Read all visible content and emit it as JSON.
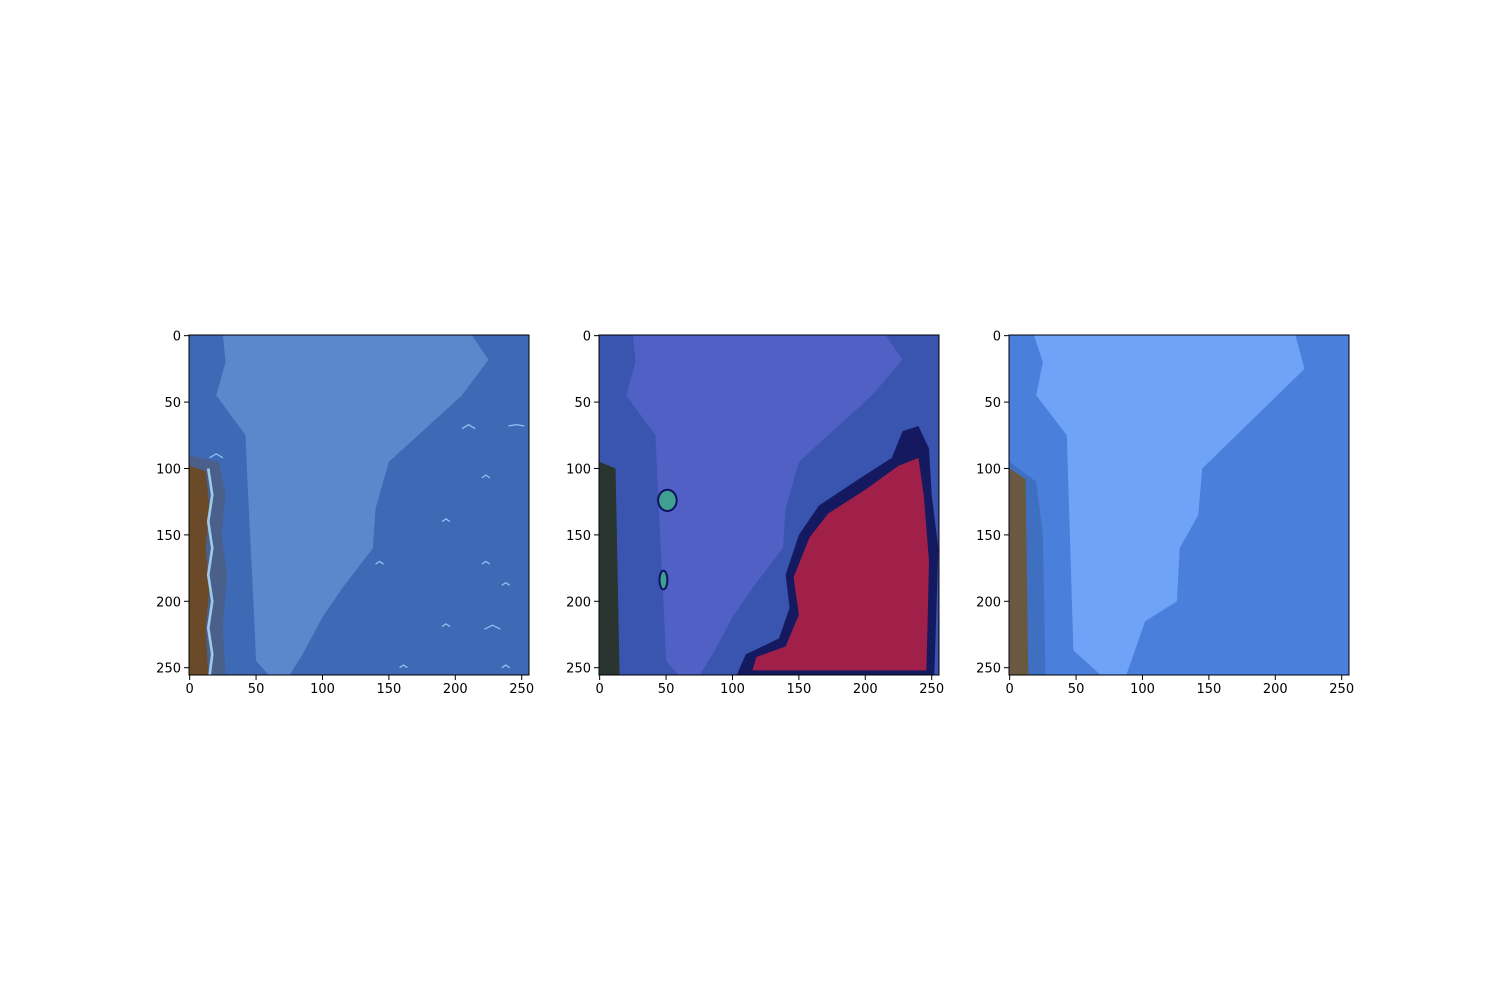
{
  "chart_data": [
    {
      "type": "image",
      "xlim": [
        -0.5,
        255.5
      ],
      "ylim": [
        255.5,
        -0.5
      ],
      "xticks": [
        0,
        50,
        100,
        150,
        200,
        250
      ],
      "yticks": [
        0,
        50,
        100,
        150,
        200,
        250
      ]
    },
    {
      "type": "image",
      "xlim": [
        -0.5,
        255.5
      ],
      "ylim": [
        255.5,
        -0.5
      ],
      "xticks": [
        0,
        50,
        100,
        150,
        200,
        250
      ],
      "yticks": [
        0,
        50,
        100,
        150,
        200,
        250
      ]
    },
    {
      "type": "image",
      "xlim": [
        -0.5,
        255.5
      ],
      "ylim": [
        255.5,
        -0.5
      ],
      "xticks": [
        0,
        50,
        100,
        150,
        200,
        250
      ],
      "yticks": [
        0,
        50,
        100,
        150,
        200,
        250
      ]
    }
  ]
}
